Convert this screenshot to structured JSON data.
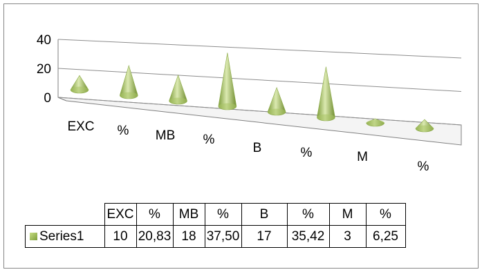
{
  "chart_data": {
    "type": "3d-cone-column",
    "categories": [
      "EXC",
      "%",
      "MB",
      "%",
      "B",
      "%",
      "M",
      "%"
    ],
    "series": [
      {
        "name": "Series1",
        "values": [
          10,
          20.83,
          18,
          37.5,
          17,
          35.42,
          3,
          6.25
        ],
        "display_values": [
          "10",
          "20,83",
          "18",
          "37,50",
          "17",
          "35,42",
          "3",
          "6,25"
        ]
      }
    ],
    "y_ticks": [
      "40",
      "20",
      "0"
    ],
    "ylim": [
      0,
      40
    ],
    "grid": true,
    "legend": "data-table",
    "colors": {
      "cone": "#9bbb59",
      "cone_light": "#dbe9b0",
      "cone_dark": "#6f8c2f",
      "frame": "#7f7f7f",
      "grid": "#8c8c8c"
    }
  }
}
